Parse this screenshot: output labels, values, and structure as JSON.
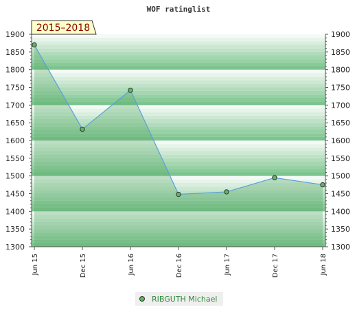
{
  "chart_data": {
    "type": "area",
    "title": "WOF ratinglist",
    "period_badge": "2015–2018",
    "xlabel": "",
    "ylabel": "",
    "categories": [
      "Jun 15",
      "Dec 15",
      "Jun 16",
      "Dec 16",
      "Jun 17",
      "Dec 17",
      "Jun 18"
    ],
    "series": [
      {
        "name": "RIBGUTH Michael",
        "values": [
          1870,
          1632,
          1742,
          1448,
          1455,
          1495,
          1475
        ],
        "color": "#5aa0d8",
        "marker_color": "#5cb85c"
      }
    ],
    "ylim": [
      1300,
      1900
    ],
    "yticks": [
      "1900",
      "1850",
      "1800",
      "1750",
      "1700",
      "1650",
      "1600",
      "1550",
      "1500",
      "1450",
      "1400",
      "1350",
      "1300"
    ],
    "grid": true,
    "dual_y_axis": true,
    "legend_position": "bottom",
    "colors": {
      "band_dark": "#7cc48e",
      "band_light": "#f4faf5",
      "fill_under": "#55aa66",
      "axis": "#555555"
    }
  }
}
